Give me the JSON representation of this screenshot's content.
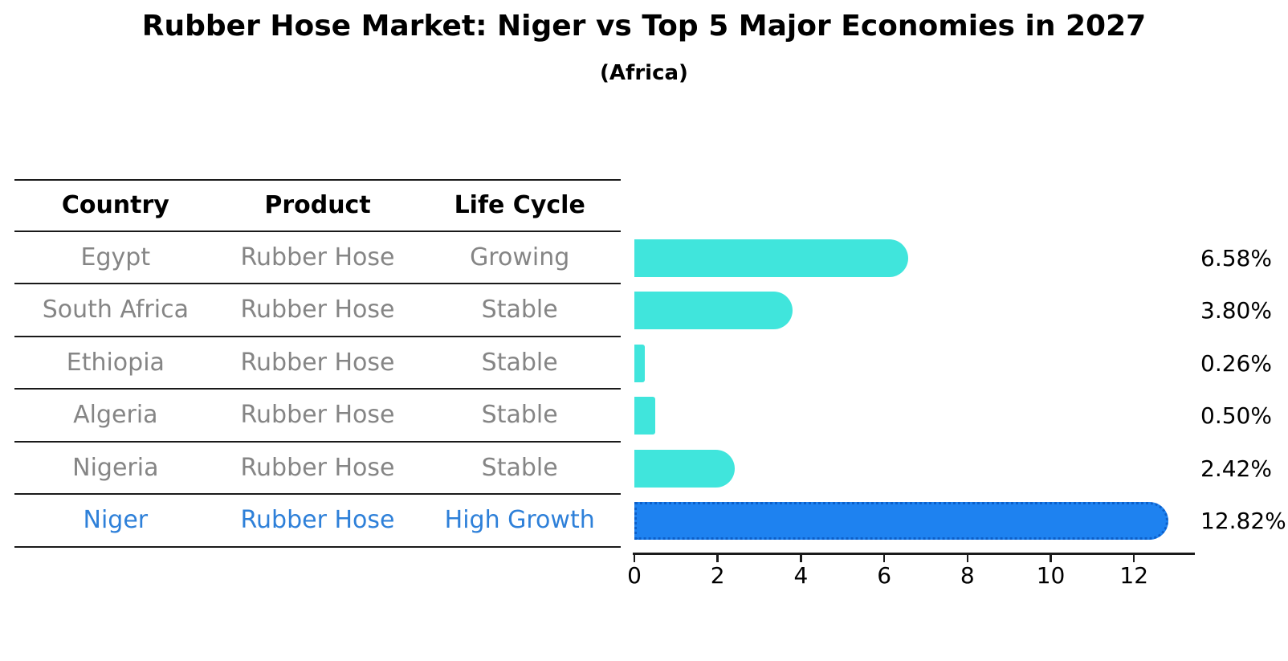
{
  "figure": {
    "title": "Rubber Hose Market: Niger vs Top 5 Major Economies in 2027",
    "subtitle": "(Africa)"
  },
  "table": {
    "headers": {
      "country": "Country",
      "product": "Product",
      "life_cycle": "Life Cycle"
    },
    "rows": [
      {
        "country": "Egypt",
        "product": "Rubber Hose",
        "life_cycle": "Growing",
        "highlight": false
      },
      {
        "country": "South Africa",
        "product": "Rubber Hose",
        "life_cycle": "Stable",
        "highlight": false
      },
      {
        "country": "Ethiopia",
        "product": "Rubber Hose",
        "life_cycle": "Stable",
        "highlight": false
      },
      {
        "country": "Algeria",
        "product": "Rubber Hose",
        "life_cycle": "Stable",
        "highlight": false
      },
      {
        "country": "Nigeria",
        "product": "Rubber Hose",
        "life_cycle": "Stable",
        "highlight": false
      },
      {
        "country": "Niger",
        "product": "Rubber Hose",
        "life_cycle": "High Growth",
        "highlight": true
      }
    ]
  },
  "chart_data": {
    "type": "bar",
    "orientation": "horizontal",
    "title": "Rubber Hose Market: Niger vs Top 5 Major Economies in 2027",
    "subtitle": "(Africa)",
    "categories": [
      "Egypt",
      "South Africa",
      "Ethiopia",
      "Algeria",
      "Nigeria",
      "Niger"
    ],
    "values": [
      6.58,
      3.8,
      0.26,
      0.5,
      2.42,
      12.82
    ],
    "value_labels": [
      "6.58%",
      "3.80%",
      "0.26%",
      "0.50%",
      "2.42%",
      "12.82%"
    ],
    "highlight_index": 5,
    "x_ticks": [
      0,
      2,
      4,
      6,
      8,
      10,
      12
    ],
    "xlim": [
      0,
      13.5
    ],
    "grid": false,
    "legend": null,
    "colors": {
      "bar_default": "#40e5dc",
      "bar_highlight": "#1e82f0",
      "highlight_text": "#2e80d9",
      "table_text": "#858585",
      "axis_text": "#000000"
    }
  }
}
